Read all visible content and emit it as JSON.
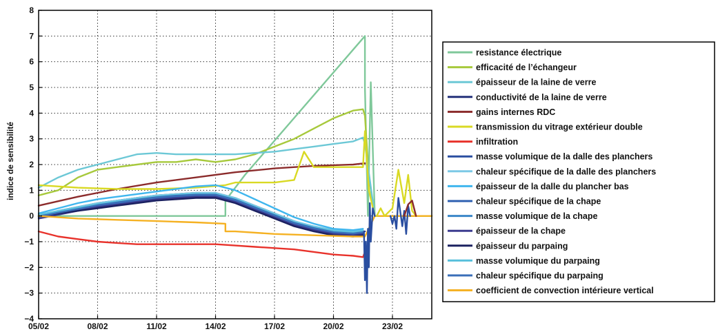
{
  "chart_data": {
    "type": "line",
    "ylabel": "indice de sensibilité",
    "xlabel": "",
    "ylim": [
      -4,
      8
    ],
    "yticks": [
      -4,
      -3,
      -2,
      -1,
      0,
      1,
      2,
      3,
      4,
      5,
      6,
      7,
      8
    ],
    "xlim": [
      0,
      20
    ],
    "xticks": [
      0,
      3,
      6,
      9,
      12,
      15,
      18
    ],
    "xtick_labels": [
      "05/02",
      "08/02",
      "11/02",
      "14/02",
      "17/02",
      "20/02",
      "23/02"
    ],
    "grid": true,
    "legend_position": "right",
    "series": [
      {
        "name": "resistance électrique",
        "color": "#7fc89a",
        "x": [
          0,
          9.5,
          9.5,
          10.5,
          16.6,
          16.6,
          16.75,
          16.9,
          17.1,
          20
        ],
        "y": [
          0,
          0,
          0.6,
          1.6,
          7.0,
          5.0,
          0,
          5.2,
          0,
          0
        ]
      },
      {
        "name": "efficacité de l’échangeur",
        "color": "#a7c93c",
        "x": [
          0,
          1,
          2,
          3,
          4,
          5,
          6,
          7,
          8,
          9,
          10,
          11,
          12,
          13,
          14,
          15,
          16,
          16.5,
          16.6,
          16.8,
          17.1,
          20
        ],
        "y": [
          0.8,
          1.0,
          1.5,
          1.8,
          1.9,
          2.0,
          2.1,
          2.1,
          2.2,
          2.1,
          2.2,
          2.4,
          2.7,
          3.0,
          3.4,
          3.8,
          4.1,
          4.15,
          3.9,
          1.5,
          0,
          0
        ]
      },
      {
        "name": "épaisseur de la laine de verre",
        "color": "#6cc8d6",
        "x": [
          0,
          1,
          2,
          3,
          4,
          5,
          6,
          7,
          8,
          9,
          10,
          11,
          12,
          13,
          14,
          15,
          16,
          16.5,
          16.6,
          17.1,
          20
        ],
        "y": [
          1.1,
          1.5,
          1.8,
          2.0,
          2.2,
          2.4,
          2.45,
          2.4,
          2.4,
          2.4,
          2.4,
          2.45,
          2.5,
          2.6,
          2.7,
          2.8,
          2.9,
          3.05,
          2.8,
          0,
          0
        ]
      },
      {
        "name": "conductivité de la laine de verre",
        "color": "#23307a",
        "x": [
          0,
          1,
          2,
          3,
          4,
          5,
          6,
          7,
          8,
          9,
          10,
          11,
          12,
          13,
          14,
          15,
          16,
          16.5,
          16.6
        ],
        "y": [
          0,
          0.2,
          0.35,
          0.5,
          0.6,
          0.7,
          0.8,
          0.85,
          0.9,
          0.9,
          0.7,
          0.4,
          0.1,
          -0.2,
          -0.45,
          -0.6,
          -0.65,
          -0.6,
          -0.6
        ]
      },
      {
        "name": "gains internes RDC",
        "color": "#8b2b2b",
        "x": [
          0,
          2,
          4,
          6,
          8,
          10,
          12,
          14,
          16,
          16.6
        ],
        "y": [
          0.4,
          0.75,
          1.05,
          1.3,
          1.5,
          1.7,
          1.85,
          1.95,
          2.0,
          2.05
        ]
      },
      {
        "name": "transmission du vitrage extérieur double",
        "color": "#d9d923",
        "x": [
          0,
          2,
          4,
          6,
          8,
          9.5,
          10,
          11,
          12,
          13,
          13.5,
          14,
          15,
          16,
          16.5,
          16.6,
          16.8,
          17.1,
          20
        ],
        "y": [
          1.2,
          1.1,
          1.05,
          1.05,
          1.1,
          1.2,
          1.3,
          1.3,
          1.3,
          1.4,
          2.5,
          1.9,
          1.9,
          1.9,
          1.9,
          3.3,
          1.0,
          0,
          0
        ]
      },
      {
        "name": "infiltration",
        "color": "#e8322b",
        "x": [
          0,
          1,
          2,
          3,
          4,
          5,
          6,
          7,
          8,
          9,
          10,
          11,
          12,
          13,
          14,
          15,
          16,
          16.5,
          16.6
        ],
        "y": [
          -0.6,
          -0.8,
          -0.9,
          -1.0,
          -1.05,
          -1.1,
          -1.1,
          -1.1,
          -1.1,
          -1.1,
          -1.15,
          -1.2,
          -1.25,
          -1.3,
          -1.4,
          -1.5,
          -1.55,
          -1.6,
          -1.4
        ]
      },
      {
        "name": "masse volumique de la dalle des planchers",
        "color": "#2a4ea0",
        "x": [
          0,
          1,
          2,
          3,
          4,
          5,
          6,
          7,
          8,
          9,
          10,
          11,
          12,
          13,
          14,
          15,
          16,
          16.5
        ],
        "y": [
          0,
          0.15,
          0.3,
          0.45,
          0.55,
          0.65,
          0.75,
          0.8,
          0.85,
          0.85,
          0.65,
          0.35,
          0.05,
          -0.25,
          -0.45,
          -0.6,
          -0.65,
          -0.6
        ]
      },
      {
        "name": "chaleur spécifique de la dalle des planchers",
        "color": "#7cc9e6",
        "x": [
          0,
          1,
          2,
          3,
          4,
          5,
          6,
          7,
          8,
          9,
          10,
          11,
          12,
          13,
          14,
          15,
          16,
          16.5
        ],
        "y": [
          0.05,
          0.2,
          0.35,
          0.5,
          0.6,
          0.7,
          0.8,
          0.85,
          0.9,
          0.9,
          0.7,
          0.4,
          0.1,
          -0.2,
          -0.4,
          -0.55,
          -0.6,
          -0.55
        ]
      },
      {
        "name": "épaisseur de la dalle du plancher bas",
        "color": "#3fb6ee",
        "x": [
          0,
          1,
          2,
          3,
          4,
          5,
          6,
          7,
          8,
          9,
          10,
          11,
          12,
          13,
          14,
          15,
          16,
          16.5
        ],
        "y": [
          0.1,
          0.3,
          0.5,
          0.65,
          0.75,
          0.85,
          0.95,
          1.05,
          1.15,
          1.2,
          1.0,
          0.65,
          0.3,
          -0.05,
          -0.3,
          -0.5,
          -0.55,
          -0.5
        ]
      },
      {
        "name": "chaleur spécifique de la chape",
        "color": "#2d5fb0",
        "x": [
          0,
          1,
          2,
          3,
          4,
          5,
          6,
          7,
          8,
          9,
          10,
          11,
          12,
          13,
          14,
          15,
          16,
          16.5
        ],
        "y": [
          -0.05,
          0.1,
          0.25,
          0.4,
          0.5,
          0.6,
          0.7,
          0.75,
          0.8,
          0.8,
          0.6,
          0.3,
          0.0,
          -0.3,
          -0.5,
          -0.65,
          -0.7,
          -0.65
        ]
      },
      {
        "name": "masse volumique de la chape",
        "color": "#3a86c8",
        "x": [
          0,
          1,
          2,
          3,
          4,
          5,
          6,
          7,
          8,
          9,
          10,
          11,
          12,
          13,
          14,
          15,
          16,
          16.5
        ],
        "y": [
          0,
          0.12,
          0.28,
          0.42,
          0.52,
          0.62,
          0.72,
          0.78,
          0.82,
          0.82,
          0.62,
          0.32,
          0.02,
          -0.28,
          -0.48,
          -0.62,
          -0.68,
          -0.62
        ]
      },
      {
        "name": "épaisseur de la chape",
        "color": "#3b3b8f",
        "x": [
          0,
          1,
          2,
          3,
          4,
          5,
          6,
          7,
          8,
          9,
          10,
          11,
          12,
          13,
          14,
          15,
          16,
          16.5
        ],
        "y": [
          -0.1,
          0.05,
          0.2,
          0.35,
          0.45,
          0.55,
          0.65,
          0.7,
          0.75,
          0.75,
          0.55,
          0.25,
          -0.05,
          -0.35,
          -0.55,
          -0.7,
          -0.75,
          -0.7
        ]
      },
      {
        "name": "épaisseur du parpaing",
        "color": "#1b2160",
        "x": [
          0,
          1,
          2,
          3,
          4,
          5,
          6,
          7,
          8,
          9,
          10,
          11,
          12,
          13,
          14,
          15,
          16,
          16.5
        ],
        "y": [
          0,
          0.1,
          0.2,
          0.3,
          0.4,
          0.5,
          0.6,
          0.65,
          0.7,
          0.7,
          0.5,
          0.2,
          -0.1,
          -0.4,
          -0.6,
          -0.75,
          -0.8,
          -0.75
        ]
      },
      {
        "name": "masse volumique du parpaing",
        "color": "#58c0dc",
        "x": [
          0,
          1,
          2,
          3,
          4,
          5,
          6,
          7,
          8,
          9,
          10,
          11,
          12,
          13,
          14,
          15,
          16,
          16.5
        ],
        "y": [
          0.05,
          0.18,
          0.32,
          0.46,
          0.56,
          0.66,
          0.76,
          0.82,
          0.86,
          0.86,
          0.66,
          0.36,
          0.06,
          -0.24,
          -0.44,
          -0.58,
          -0.63,
          -0.58
        ]
      },
      {
        "name": "chaleur spécifique du parpaing",
        "color": "#3a6eb8",
        "x": [
          0,
          1,
          2,
          3,
          4,
          5,
          6,
          7,
          8,
          9,
          10,
          11,
          12,
          13,
          14,
          15,
          16,
          16.5
        ],
        "y": [
          -0.02,
          0.13,
          0.27,
          0.42,
          0.53,
          0.63,
          0.73,
          0.79,
          0.83,
          0.83,
          0.63,
          0.33,
          0.03,
          -0.27,
          -0.47,
          -0.63,
          -0.68,
          -0.63
        ]
      },
      {
        "name": "coefficient de convection intérieure vertical",
        "color": "#f5b122",
        "x": [
          0,
          2,
          4,
          6,
          8,
          9.5,
          9.5,
          10,
          12,
          14,
          16,
          16.6,
          17.1,
          20
        ],
        "y": [
          0,
          -0.1,
          -0.15,
          -0.2,
          -0.25,
          -0.3,
          -0.6,
          -0.6,
          -0.7,
          -0.75,
          -0.8,
          -0.8,
          0,
          0
        ]
      },
      {
        "name": "",
        "color": "#2a4ea0",
        "x": [
          16.55,
          16.6,
          16.65,
          16.7,
          16.75,
          16.8,
          16.85,
          16.9,
          17.0,
          17.1
        ],
        "y": [
          -0.6,
          -2.5,
          -1.0,
          -3.0,
          -0.5,
          -2.0,
          0.5,
          -1.0,
          0.3,
          0
        ]
      },
      {
        "name": "",
        "color": "#d9d923",
        "x": [
          17.2,
          17.4,
          17.6,
          18.0,
          18.3,
          18.6,
          18.8,
          19.0,
          19.2
        ],
        "y": [
          0,
          0.3,
          0,
          0.3,
          1.8,
          0.5,
          1.6,
          0.2,
          0
        ]
      },
      {
        "name": "",
        "color": "#2a4ea0",
        "x": [
          17.9,
          18.0,
          18.1,
          18.2,
          18.3,
          18.5,
          18.6,
          18.7,
          18.8,
          18.9
        ],
        "y": [
          0,
          -0.3,
          0,
          -0.5,
          0.7,
          -0.4,
          0.2,
          -0.7,
          0.4,
          0
        ]
      },
      {
        "name": "",
        "color": "#8b2b2b",
        "x": [
          18.6,
          18.8,
          19.0,
          19.2
        ],
        "y": [
          0,
          0.45,
          0.6,
          0
        ]
      }
    ]
  }
}
